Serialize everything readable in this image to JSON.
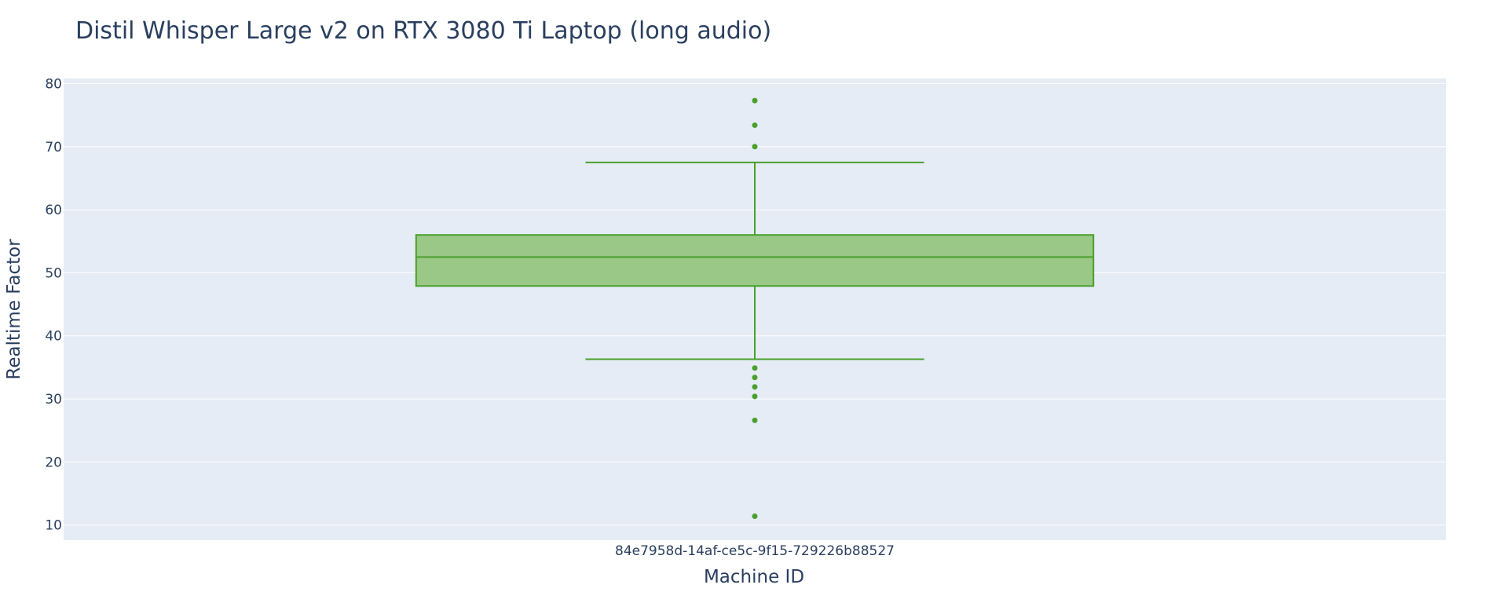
{
  "chart_data": {
    "type": "box",
    "title": "Distil Whisper Large v2 on RTX 3080 Ti Laptop (long audio)",
    "xlabel": "Machine ID",
    "ylabel": "Realtime Factor",
    "categories": [
      "84e7958d-14af-ce5c-9f15-729226b88527"
    ],
    "ylim": [
      7.6,
      80.8
    ],
    "yticks": [
      10,
      20,
      30,
      40,
      50,
      60,
      70,
      80
    ],
    "grid": true,
    "boxes": [
      {
        "category": "84e7958d-14af-ce5c-9f15-729226b88527",
        "lower_whisker": 36.3,
        "q1": 47.9,
        "median": 52.5,
        "q3": 56.0,
        "upper_whisker": 67.5,
        "outliers": [
          77.3,
          73.4,
          70.0,
          34.9,
          33.4,
          31.9,
          30.4,
          26.6,
          11.4
        ]
      }
    ],
    "colors": {
      "box_line": "#4aa02c",
      "box_fill": "#9ac887",
      "plot_bg": "#e5ecf6",
      "grid": "#ffffff",
      "text": "#2a3f5f"
    }
  }
}
